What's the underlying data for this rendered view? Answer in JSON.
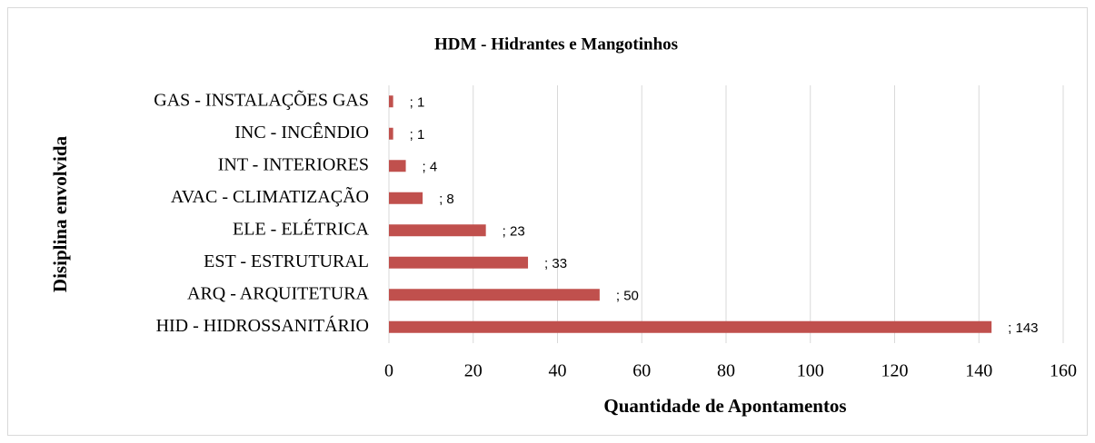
{
  "chart_data": {
    "type": "bar",
    "orientation": "horizontal",
    "title": "HDM - Hidrantes e Mangotinhos",
    "x_label": "Quantidade de Apontamentos",
    "y_label": "Disiplina envolvida",
    "categories": [
      "GAS - INSTALAÇÕES GAS",
      "INC - INCÊNDIO",
      "INT - INTERIORES",
      "AVAC - CLIMATIZAÇÃO",
      "ELE - ELÉTRICA",
      "EST - ESTRUTURAL",
      "ARQ - ARQUITETURA",
      "HID - HIDROSSANITÁRIO"
    ],
    "values": [
      1,
      1,
      4,
      8,
      23,
      33,
      50,
      143
    ],
    "value_labels": [
      "; 1",
      "; 1",
      "; 4",
      "; 8",
      "; 23",
      "; 33",
      "; 50",
      "; 143"
    ],
    "color": "#c0504d",
    "xlim": [
      0,
      160
    ],
    "xticks": [
      0,
      20,
      40,
      60,
      80,
      100,
      120,
      140,
      160
    ],
    "grid": true
  }
}
